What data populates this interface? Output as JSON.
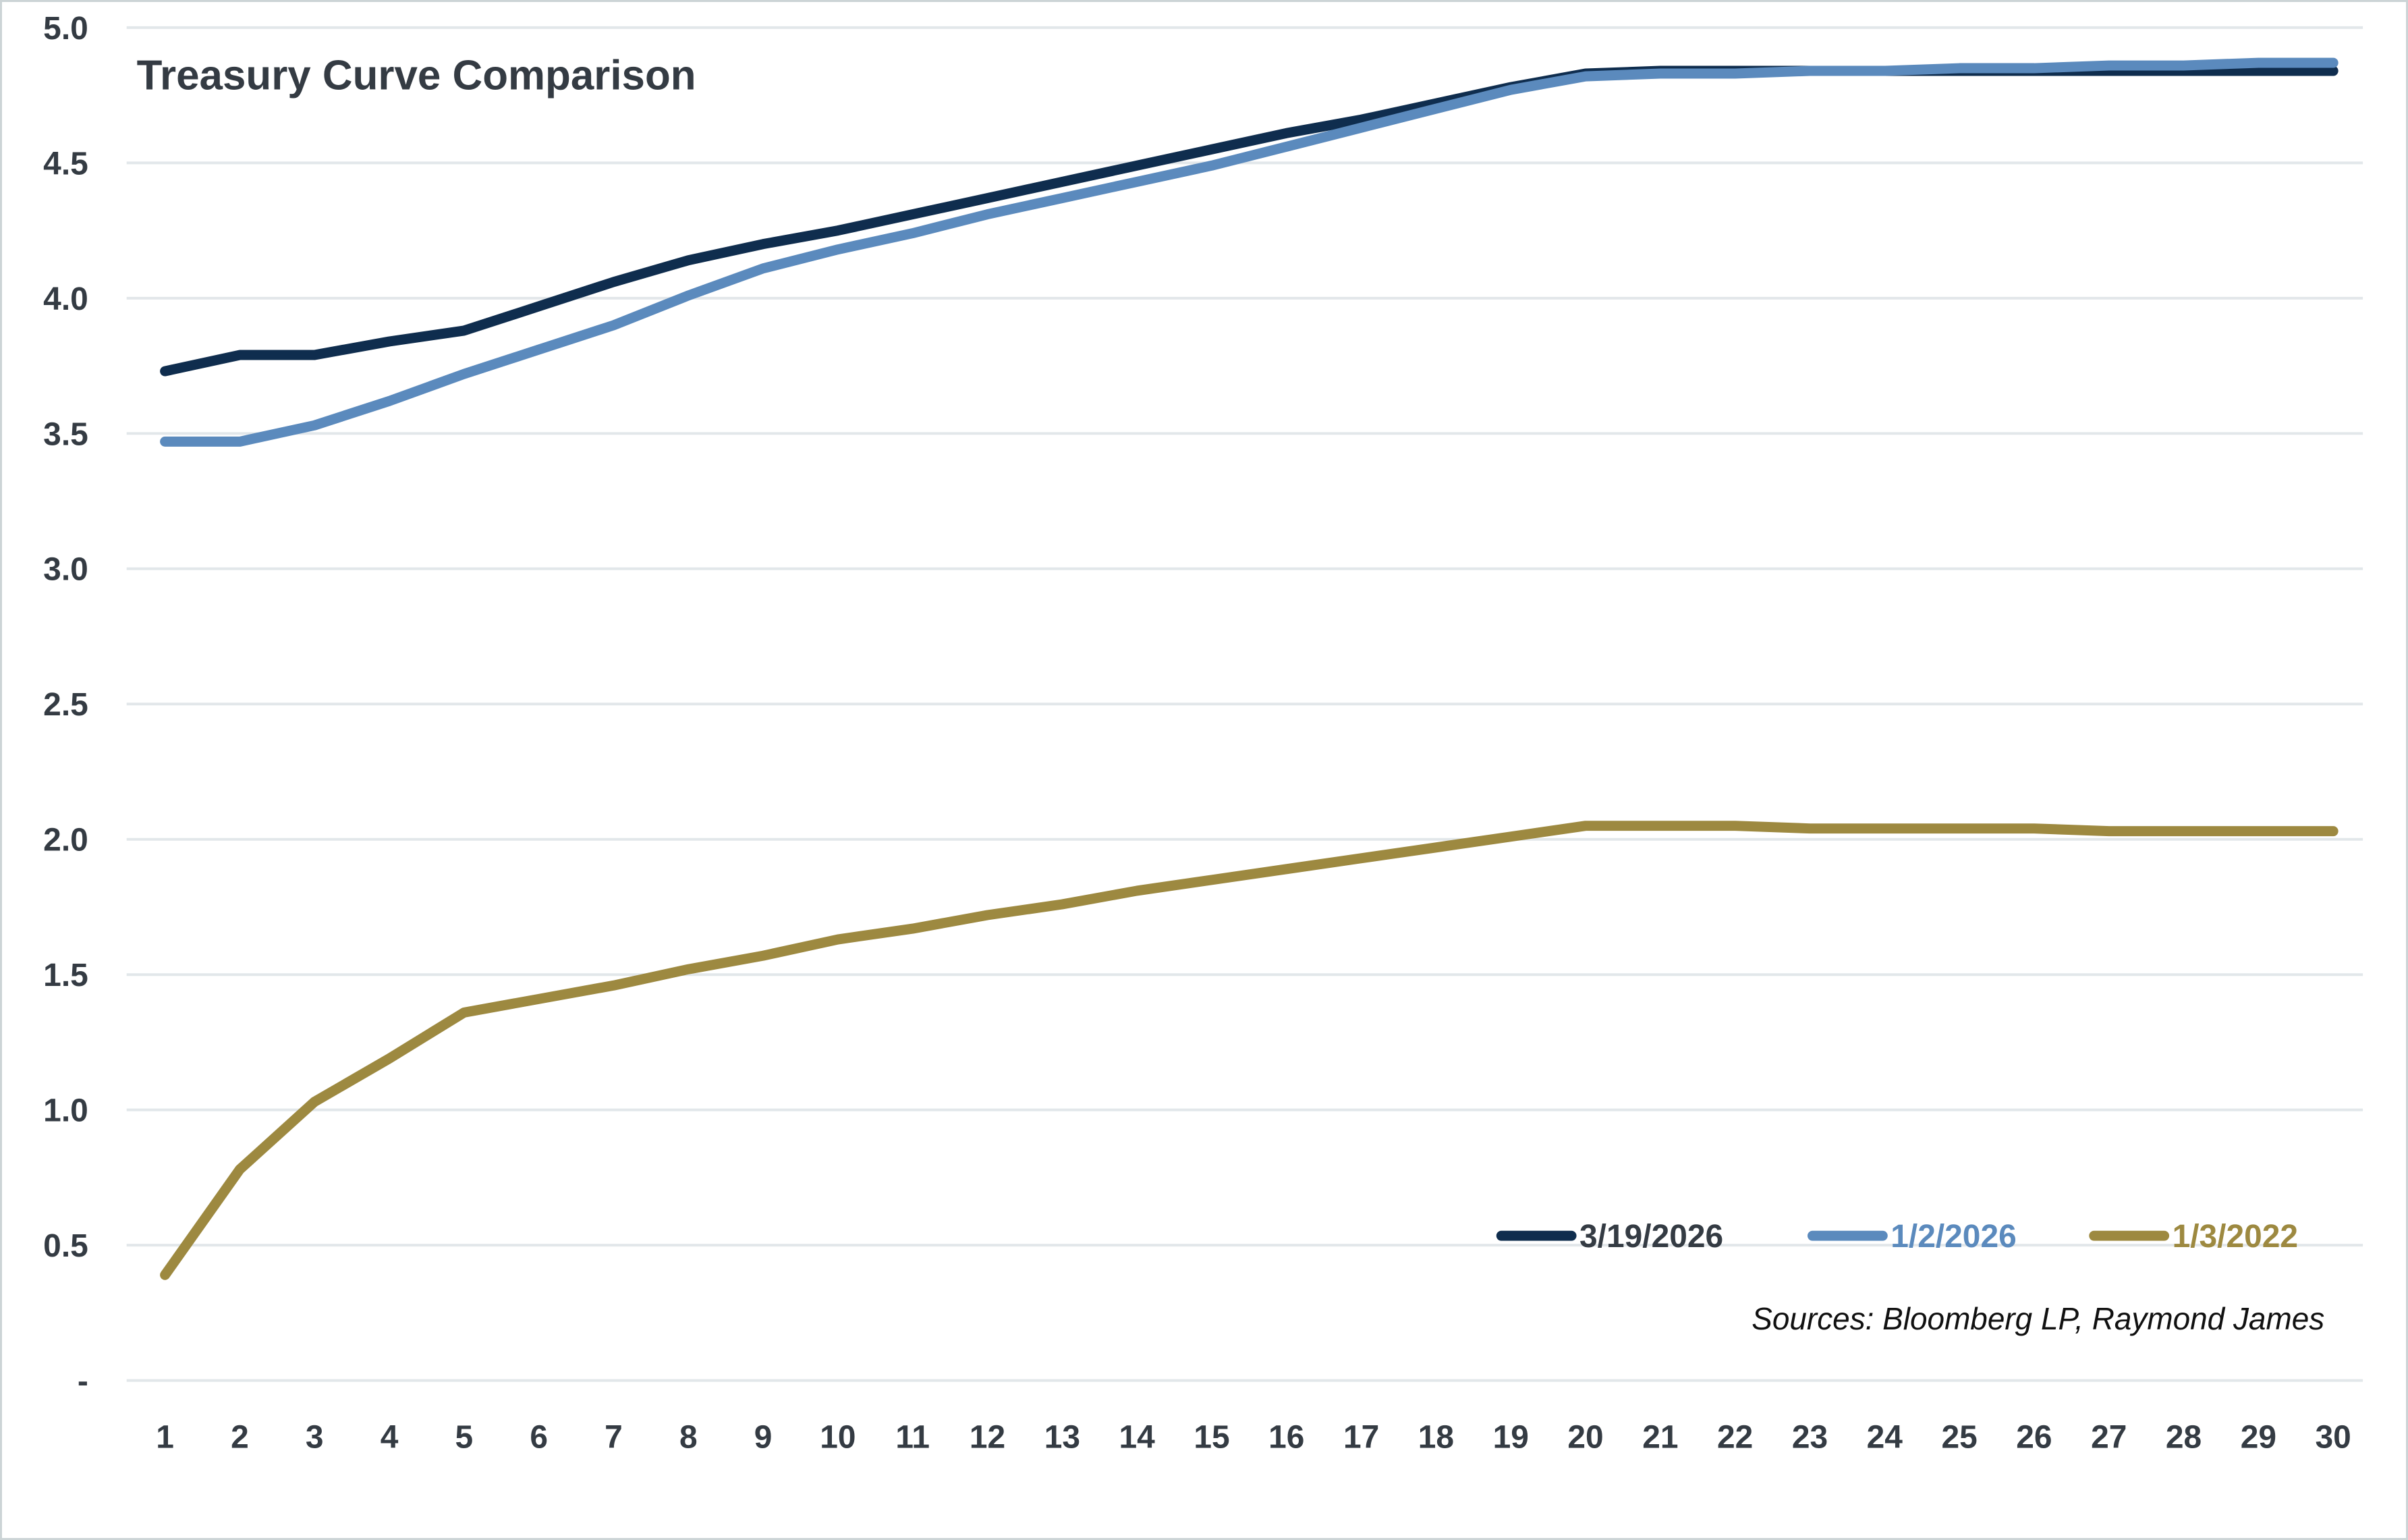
{
  "title": "Treasury Curve Comparison",
  "sources": "Sources: Bloomberg LP, Raymond James",
  "colors": {
    "navy": "#0f2d4e",
    "blue": "#5b8abd",
    "gold": "#9d8940",
    "gridline": "#e2e7ea",
    "text_dark": "#343b43",
    "sources_text": "#111111",
    "background": "#ffffff",
    "border": "#ccd4d6"
  },
  "chart_data": {
    "type": "line",
    "title": "Treasury Curve Comparison",
    "xlabel": "",
    "ylabel": "",
    "grid": true,
    "legend_position": "bottom-right",
    "ylim": [
      0,
      5
    ],
    "x": [
      1,
      2,
      3,
      4,
      5,
      6,
      7,
      8,
      9,
      10,
      11,
      12,
      13,
      14,
      15,
      16,
      17,
      18,
      19,
      20,
      21,
      22,
      23,
      24,
      25,
      26,
      27,
      28,
      29,
      30
    ],
    "xtick_labels": [
      "1",
      "2",
      "3",
      "4",
      "5",
      "6",
      "7",
      "8",
      "9",
      "10",
      "11",
      "12",
      "13",
      "14",
      "15",
      "16",
      "17",
      "18",
      "19",
      "20",
      "21",
      "22",
      "23",
      "24",
      "25",
      "26",
      "27",
      "28",
      "29",
      "30"
    ],
    "ytick_values": [
      5.0,
      4.5,
      4.0,
      3.5,
      3.0,
      2.5,
      2.0,
      1.5,
      1.0,
      0.5,
      0.0
    ],
    "ytick_labels": [
      "5.0",
      "4.5",
      "4.0",
      "3.5",
      "3.0",
      "2.5",
      "2.0",
      "1.5",
      "1.0",
      "0.5",
      "-"
    ],
    "series": [
      {
        "name": "3/19/2026",
        "color_key": "navy",
        "values": [
          3.73,
          3.79,
          3.79,
          3.84,
          3.88,
          3.97,
          4.06,
          4.14,
          4.2,
          4.25,
          4.31,
          4.37,
          4.43,
          4.49,
          4.55,
          4.61,
          4.66,
          4.72,
          4.78,
          4.83,
          4.84,
          4.84,
          4.84,
          4.84,
          4.84,
          4.84,
          4.84,
          4.84,
          4.84,
          4.84
        ]
      },
      {
        "name": "1/2/2026",
        "color_key": "blue",
        "values": [
          3.47,
          3.47,
          3.53,
          3.62,
          3.72,
          3.81,
          3.9,
          4.01,
          4.11,
          4.18,
          4.24,
          4.31,
          4.37,
          4.43,
          4.49,
          4.56,
          4.63,
          4.7,
          4.77,
          4.82,
          4.83,
          4.83,
          4.84,
          4.84,
          4.85,
          4.85,
          4.86,
          4.86,
          4.87,
          4.87
        ]
      },
      {
        "name": "1/3/2022",
        "color_key": "gold",
        "values": [
          0.39,
          0.78,
          1.03,
          1.19,
          1.36,
          1.41,
          1.46,
          1.52,
          1.57,
          1.63,
          1.67,
          1.72,
          1.76,
          1.81,
          1.85,
          1.89,
          1.93,
          1.97,
          2.01,
          2.05,
          2.05,
          2.05,
          2.04,
          2.04,
          2.04,
          2.04,
          2.03,
          2.03,
          2.03,
          2.03
        ]
      }
    ]
  }
}
